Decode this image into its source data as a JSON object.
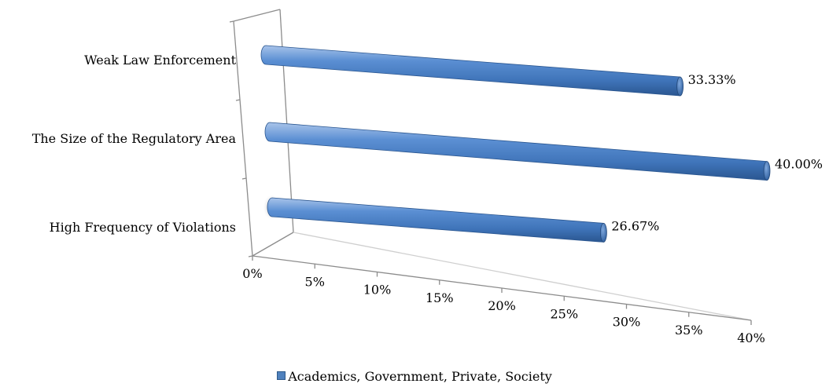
{
  "chart_data": {
    "type": "bar",
    "orientation": "horizontal",
    "style": "3d-cylinder",
    "categories": [
      "High Frequency of Violations",
      "The Size of the Regulatory Area",
      "Weak Law Enforcement"
    ],
    "series": [
      {
        "name": "Academics, Government, Private, Society",
        "values": [
          26.67,
          40.0,
          33.33
        ],
        "color": "#4f81bd"
      }
    ],
    "data_labels": [
      "26.67%",
      "40.00%",
      "33.33%"
    ],
    "x_ticks": [
      "0%",
      "5%",
      "10%",
      "15%",
      "20%",
      "25%",
      "30%",
      "35%",
      "40%"
    ],
    "xlim": [
      0,
      40
    ],
    "grid": false,
    "legend_position": "bottom"
  }
}
